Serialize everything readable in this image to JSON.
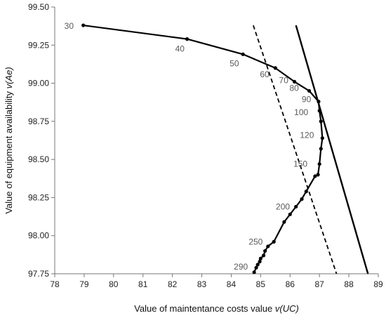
{
  "chart_data": {
    "type": "line",
    "xlabel_prefix": "Value of maintentance costs value ",
    "xlabel_var": "v(UC)",
    "ylabel_prefix": "Value of equipment availability ",
    "ylabel_var": "v(Ae)",
    "xlim": [
      78,
      89
    ],
    "ylim": [
      97.75,
      99.5
    ],
    "x_ticks": [
      78,
      79,
      80,
      81,
      82,
      83,
      84,
      85,
      86,
      87,
      88,
      89
    ],
    "y_ticks": [
      97.75,
      98.0,
      98.25,
      98.5,
      98.75,
      99.0,
      99.25,
      99.5
    ],
    "y_tick_labels": [
      "97.75",
      "98.00",
      "98.25",
      "98.50",
      "98.75",
      "99.00",
      "99.25",
      "99.50"
    ],
    "grid": false,
    "series": [
      {
        "style": "solid-marked",
        "x": [
          78.97,
          82.5,
          84.4,
          85.5,
          86.15,
          86.65,
          86.97,
          87.0,
          87.05,
          87.1,
          87.05,
          87.0,
          86.95,
          86.85,
          86.55,
          86.4,
          86.2,
          86.0,
          85.8,
          85.45,
          85.25,
          85.15,
          85.1,
          85.0,
          84.97,
          84.9,
          84.85,
          84.78
        ],
        "y": [
          99.38,
          99.29,
          99.19,
          99.1,
          99.01,
          98.95,
          98.88,
          98.82,
          98.75,
          98.64,
          98.57,
          98.47,
          98.4,
          98.39,
          98.29,
          98.24,
          98.19,
          98.14,
          98.09,
          97.96,
          97.93,
          97.9,
          97.87,
          97.85,
          97.83,
          97.81,
          97.79,
          97.76
        ]
      },
      {
        "style": "dashed",
        "x": [
          84.75,
          87.58
        ],
        "y": [
          99.38,
          97.75
        ]
      },
      {
        "style": "solid-thick",
        "x": [
          86.2,
          88.65
        ],
        "y": [
          99.38,
          97.75
        ]
      }
    ],
    "annotations": [
      {
        "text": "30",
        "x": 78.97,
        "y": 99.38
      },
      {
        "text": "40",
        "x": 82.5,
        "y": 99.29
      },
      {
        "text": "50",
        "x": 84.4,
        "y": 99.19
      },
      {
        "text": "60",
        "x": 85.5,
        "y": 99.1
      },
      {
        "text": "70",
        "x": 86.15,
        "y": 99.01
      },
      {
        "text": "80",
        "x": 86.65,
        "y": 98.95
      },
      {
        "text": "90",
        "x": 86.97,
        "y": 98.88
      },
      {
        "text": "100",
        "x": 87.0,
        "y": 98.79
      },
      {
        "text": "120",
        "x": 87.1,
        "y": 98.64
      },
      {
        "text": "150",
        "x": 86.95,
        "y": 98.47
      },
      {
        "text": "200",
        "x": 86.4,
        "y": 98.19
      },
      {
        "text": "250",
        "x": 85.5,
        "y": 97.96
      },
      {
        "text": "290",
        "x": 84.78,
        "y": 97.76
      }
    ]
  }
}
